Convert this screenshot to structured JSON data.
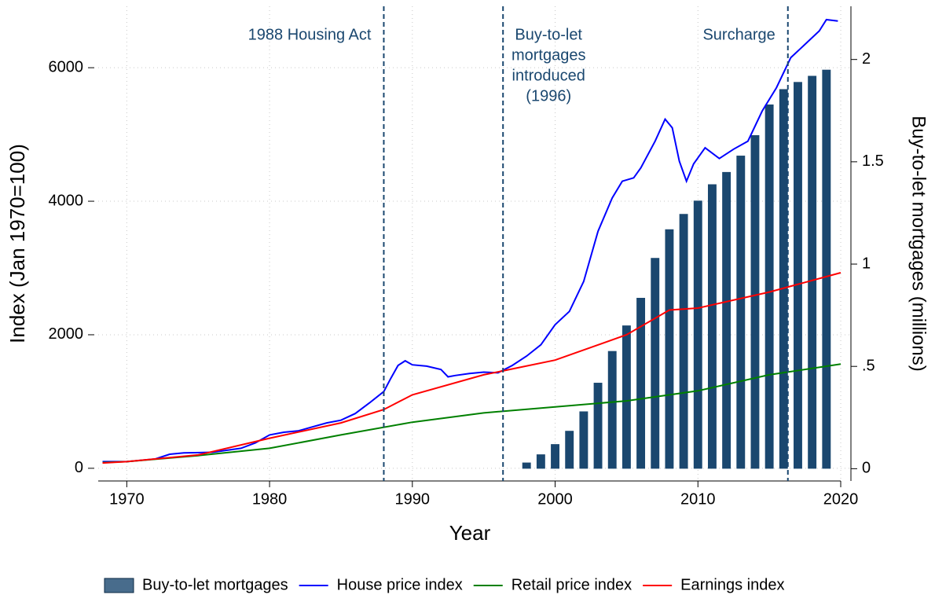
{
  "chart_data": {
    "type": "combo",
    "xlabel": "Year",
    "ylabel": "Index (Jan 1970=100)",
    "y2label": "Buy-to-let mortgages (millions)",
    "xlim": [
      1968,
      2020
    ],
    "xticks": [
      1970,
      1980,
      1990,
      2000,
      2010,
      2020
    ],
    "ylim": [
      -190,
      6920
    ],
    "yticks": [
      0,
      2000,
      4000,
      6000
    ],
    "y2lim": [
      -0.06,
      2.26
    ],
    "y2ticks": [
      0,
      {
        "value": 0.5,
        "label": ".5"
      },
      1,
      1.5,
      2
    ],
    "grid": true,
    "legend": "bottom",
    "annotations": [
      {
        "x": 1988,
        "text": [
          "1988 Housing Act"
        ],
        "align": "left"
      },
      {
        "x": 1996.35,
        "text": [
          "Buy-to-let",
          "mortgages",
          "introduced",
          "(1996)"
        ],
        "align": "right"
      },
      {
        "x": 2016.3,
        "text": [
          "Surcharge"
        ],
        "align": "left"
      }
    ],
    "series": [
      {
        "name": "Buy-to-let mortgages",
        "type": "bar",
        "axis": "y2",
        "color": "#1a476f",
        "x": [
          1998,
          1999,
          2000,
          2001,
          2002,
          2003,
          2004,
          2005,
          2006,
          2007,
          2008,
          2009,
          2010,
          2011,
          2012,
          2013,
          2014,
          2015,
          2016,
          2017,
          2018,
          2019
        ],
        "values": [
          0.03,
          0.07,
          0.12,
          0.185,
          0.28,
          0.42,
          0.575,
          0.7,
          0.835,
          1.03,
          1.17,
          1.245,
          1.31,
          1.39,
          1.45,
          1.53,
          1.63,
          1.78,
          1.855,
          1.89,
          1.92,
          1.95
        ]
      },
      {
        "name": "House price index",
        "type": "line",
        "color": "#0000ff",
        "x": [
          1968.3,
          1970,
          1972,
          1973,
          1974,
          1976,
          1978,
          1979,
          1980,
          1981,
          1982,
          1983,
          1984,
          1985,
          1986,
          1987,
          1988,
          1988.5,
          1989,
          1989.5,
          1990,
          1991,
          1992,
          1992.5,
          1993,
          1994,
          1995,
          1996,
          1997,
          1998,
          1999,
          2000,
          2001,
          2002,
          2003,
          2004,
          2004.7,
          2005.5,
          2006,
          2007,
          2007.7,
          2008.2,
          2008.7,
          2009.2,
          2009.7,
          2010.5,
          2011.5,
          2012.5,
          2013.5,
          2014.5,
          2015.5,
          2016.5,
          2017.5,
          2018.5,
          2019,
          2019.8
        ],
        "values": [
          100,
          100,
          140,
          210,
          230,
          240,
          300,
          380,
          500,
          540,
          560,
          620,
          680,
          720,
          820,
          980,
          1150,
          1350,
          1540,
          1610,
          1550,
          1530,
          1480,
          1370,
          1390,
          1420,
          1440,
          1430,
          1540,
          1680,
          1850,
          2150,
          2350,
          2800,
          3550,
          4050,
          4300,
          4350,
          4500,
          4900,
          5230,
          5100,
          4600,
          4300,
          4560,
          4800,
          4640,
          4780,
          4900,
          5350,
          5700,
          6150,
          6350,
          6550,
          6720,
          6700
        ]
      },
      {
        "name": "Retail price index",
        "type": "line",
        "color": "#008000",
        "x": [
          1968.3,
          1970,
          1975,
          1980,
          1985,
          1990,
          1995,
          2000,
          2005,
          2010,
          2015,
          2020
        ],
        "values": [
          85,
          100,
          190,
          300,
          500,
          690,
          830,
          920,
          1010,
          1160,
          1400,
          1560
        ]
      },
      {
        "name": "Earnings index",
        "type": "line",
        "color": "#ff0000",
        "x": [
          1968.3,
          1970,
          1975,
          1980,
          1985,
          1988,
          1990,
          1995,
          2000,
          2005,
          2008,
          2010,
          2015,
          2020
        ],
        "values": [
          80,
          100,
          200,
          450,
          680,
          880,
          1100,
          1400,
          1620,
          2000,
          2370,
          2400,
          2640,
          2930
        ]
      }
    ]
  }
}
